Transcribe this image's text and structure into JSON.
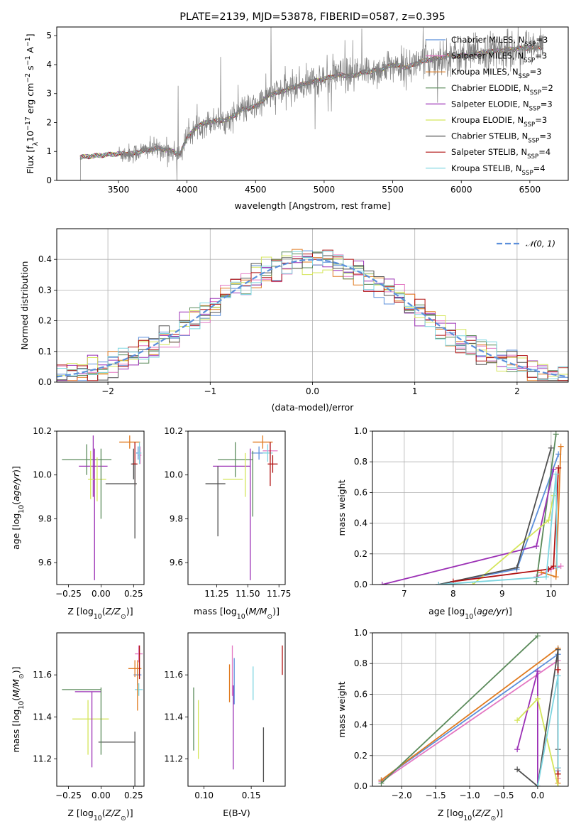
{
  "colors": {
    "Chabrier MILES": "#5b8fdb",
    "Salpeter MILES": "#e377c2",
    "Kroupa MILES": "#e07b20",
    "Chabrier ELODIE": "#5a8a5a",
    "Salpeter ELODIE": "#9b30b5",
    "Kroupa ELODIE": "#d4e55a",
    "Chabrier STELIB": "#505050",
    "Salpeter STELIB": "#b01010",
    "Kroupa STELIB": "#7dd5e0"
  },
  "chart_data": [
    {
      "id": "spectrum",
      "type": "line",
      "title": "PLATE=2139, MJD=53878, FIBERID=0587, z=0.395",
      "xlabel": "wavelength [Angstrom, rest frame]",
      "ylabel": "Flux [f_λ10^-17 erg cm^-2 s^-1 A^-1]",
      "xlim": [
        3050,
        6780
      ],
      "ylim": [
        0,
        5.3
      ],
      "xticks": [
        3500,
        4000,
        4500,
        5000,
        5500,
        6000,
        6500
      ],
      "yticks": [
        0,
        1,
        2,
        3,
        4,
        5
      ],
      "legend_location": "upper right",
      "legend": [
        {
          "model": "Chabrier MILES",
          "label": "Chabrier MILES, N_SSP=3"
        },
        {
          "model": "Salpeter MILES",
          "label": "Salpeter MILES, N_SSP=3"
        },
        {
          "model": "Kroupa MILES",
          "label": "Kroupa MILES, N_SSP=3"
        },
        {
          "model": "Chabrier ELODIE",
          "label": "Chabrier ELODIE, N_SSP=2"
        },
        {
          "model": "Salpeter ELODIE",
          "label": "Salpeter ELODIE, N_SSP=3"
        },
        {
          "model": "Kroupa ELODIE",
          "label": "Kroupa ELODIE, N_SSP=3"
        },
        {
          "model": "Chabrier STELIB",
          "label": "Chabrier STELIB, N_SSP=3"
        },
        {
          "model": "Salpeter STELIB",
          "label": "Salpeter STELIB, N_SSP=4"
        },
        {
          "model": "Kroupa STELIB",
          "label": "Kroupa STELIB, N_SSP=4"
        }
      ],
      "data_color": "#808080",
      "continuum": [
        [
          3220,
          0.8
        ],
        [
          3400,
          0.88
        ],
        [
          3500,
          0.92
        ],
        [
          3600,
          0.92
        ],
        [
          3700,
          1.05
        ],
        [
          3800,
          1.1
        ],
        [
          3900,
          1.0
        ],
        [
          3950,
          0.9
        ],
        [
          4000,
          1.5
        ],
        [
          4100,
          1.95
        ],
        [
          4200,
          2.05
        ],
        [
          4300,
          2.1
        ],
        [
          4400,
          2.45
        ],
        [
          4500,
          2.55
        ],
        [
          4600,
          2.95
        ],
        [
          4700,
          3.1
        ],
        [
          4800,
          3.25
        ],
        [
          4900,
          3.4
        ],
        [
          5000,
          3.5
        ],
        [
          5100,
          3.65
        ],
        [
          5200,
          3.6
        ],
        [
          5300,
          3.75
        ],
        [
          5400,
          3.8
        ],
        [
          5500,
          4.0
        ],
        [
          5600,
          3.9
        ],
        [
          5700,
          4.1
        ],
        [
          5800,
          4.2
        ],
        [
          5900,
          4.3
        ],
        [
          6000,
          4.3
        ],
        [
          6200,
          4.45
        ],
        [
          6400,
          4.55
        ],
        [
          6600,
          4.6
        ]
      ],
      "noise_start": 3500
    },
    {
      "id": "residuals",
      "type": "line",
      "xlabel": "(data-model)/error",
      "ylabel": "Normed distribution",
      "xlim": [
        -2.5,
        2.5
      ],
      "ylim": [
        0,
        0.5
      ],
      "xticks": [
        -2,
        -1,
        0,
        1,
        2
      ],
      "yticks": [
        0.0,
        0.1,
        0.2,
        0.3,
        0.4
      ],
      "grid": true,
      "legend_location": "upper right",
      "gaussian_label": "𝒩(0, 1)",
      "gaussian_color": "#5b8fdb",
      "bin_width": 0.1
    },
    {
      "id": "age_vs_Z",
      "type": "scatter",
      "xlabel": "Z [log10(Z/Z☉)]",
      "ylabel": "age [log10(age/yr)]",
      "xlim": [
        -0.34,
        0.33
      ],
      "ylim": [
        9.5,
        10.2
      ],
      "xticks": [
        -0.25,
        0.0,
        0.25
      ],
      "yticks": [
        9.6,
        9.8,
        10.0,
        10.2
      ],
      "points": [
        {
          "model": "Chabrier MILES",
          "x": 0.285,
          "xerr": 0.015,
          "y": 10.1,
          "yerr": 0.03
        },
        {
          "model": "Salpeter MILES",
          "x": 0.3,
          "xerr": 0.01,
          "y": 10.09,
          "yerr": 0.04
        },
        {
          "model": "Kroupa MILES",
          "x": 0.22,
          "xerr": 0.08,
          "y": 10.15,
          "yerr": 0.03
        },
        {
          "model": "Chabrier ELODIE",
          "x": -0.11,
          "xerr": 0.19,
          "y": 10.07,
          "yerr": 0.07
        },
        {
          "model": "Salpeter ELODIE",
          "x": -0.06,
          "xerr": 0.11,
          "y": 10.04,
          "yerr": 0.14
        },
        {
          "model": "Kroupa ELODIE",
          "x": -0.03,
          "xerr": 0.07,
          "y": 9.98,
          "yerr": 0.1
        },
        {
          "model": "Chabrier STELIB",
          "x": 0.25,
          "xerr": 0.02,
          "y": 10.05,
          "yerr": 0.07
        },
        {
          "model": "Salpeter STELIB",
          "x": 0.26,
          "xerr": 0.02,
          "y": 10.05,
          "yerr": 0.1
        },
        {
          "model": "Kroupa STELIB",
          "x": 0.295,
          "xerr": 0.015,
          "y": 10.1,
          "yerr": 0.05
        }
      ],
      "extra_bars": [
        {
          "model": "Chabrier ELODIE",
          "x": 0.0,
          "y": 9.96,
          "xerr": 0.0,
          "yerr": 0.16
        },
        {
          "model": "Salpeter ELODIE",
          "x": -0.05,
          "y": 9.82,
          "xerr": 0.0,
          "yerr": 0.3
        },
        {
          "model": "Kroupa ELODIE",
          "x": -0.08,
          "y": 10.0,
          "xerr": 0.0,
          "yerr": 0.11
        },
        {
          "model": "Chabrier STELIB",
          "x": 0.155,
          "y": 9.96,
          "xerr": 0.12,
          "yerr": 0.0
        },
        {
          "model": "Chabrier STELIB",
          "x": 0.26,
          "y": 9.88,
          "xerr": 0.0,
          "yerr": 0.17
        }
      ]
    },
    {
      "id": "age_vs_mass",
      "type": "scatter",
      "xlabel": "mass [log10(M/M☉)]",
      "ylabel": "",
      "xlim": [
        11.02,
        11.8
      ],
      "ylim": [
        9.5,
        10.2
      ],
      "xticks": [
        11.25,
        11.5,
        11.75
      ],
      "yticks": [
        9.6,
        9.8,
        10.0,
        10.2
      ],
      "points": [
        {
          "model": "Chabrier MILES",
          "x": 11.59,
          "xerr": 0.06,
          "y": 10.1,
          "yerr": 0.03
        },
        {
          "model": "Salpeter MILES",
          "x": 11.68,
          "xerr": 0.06,
          "y": 10.11,
          "yerr": 0.04
        },
        {
          "model": "Kroupa MILES",
          "x": 11.62,
          "xerr": 0.08,
          "y": 10.15,
          "yerr": 0.03
        },
        {
          "model": "Chabrier ELODIE",
          "x": 11.4,
          "xerr": 0.14,
          "y": 10.07,
          "yerr": 0.08
        },
        {
          "model": "Salpeter ELODIE",
          "x": 11.37,
          "xerr": 0.15,
          "y": 10.04,
          "yerr": 0.0
        },
        {
          "model": "Kroupa ELODIE",
          "x": 11.38,
          "xerr": 0.08,
          "y": 9.98,
          "yerr": 0.0
        },
        {
          "model": "Chabrier STELIB",
          "x": 11.24,
          "xerr": 0.08,
          "y": 9.96,
          "yerr": 0.0
        },
        {
          "model": "Salpeter STELIB",
          "x": 11.7,
          "xerr": 0.04,
          "y": 10.05,
          "yerr": 0.04
        },
        {
          "model": "Kroupa STELIB",
          "x": 11.66,
          "xerr": 0.04,
          "y": 10.1,
          "yerr": 0.04
        }
      ],
      "extra_bars": [
        {
          "model": "Chabrier ELODIE",
          "x": 11.54,
          "y": 9.96,
          "xerr": 0.0,
          "yerr": 0.15
        },
        {
          "model": "Salpeter ELODIE",
          "x": 11.52,
          "y": 9.82,
          "xerr": 0.0,
          "yerr": 0.3
        },
        {
          "model": "Kroupa ELODIE",
          "x": 11.48,
          "y": 10.0,
          "xerr": 0.0,
          "yerr": 0.1
        },
        {
          "model": "Chabrier STELIB",
          "x": 11.26,
          "y": 9.88,
          "xerr": 0.0,
          "yerr": 0.16
        },
        {
          "model": "Salpeter STELIB",
          "x": 11.68,
          "y": 10.05,
          "xerr": 0.0,
          "yerr": 0.1
        }
      ]
    },
    {
      "id": "weight_vs_age",
      "type": "line",
      "xlabel": "age [log10(age/yr)]",
      "ylabel": "mass weight",
      "xlim": [
        6.35,
        10.35
      ],
      "ylim": [
        0,
        1.0
      ],
      "xticks": [
        7,
        8,
        9,
        10
      ],
      "yticks": [
        0.0,
        0.2,
        0.4,
        0.6,
        0.8,
        1.0
      ],
      "grid": true,
      "series": [
        {
          "model": "Chabrier MILES",
          "x": [
            7.7,
            9.3,
            10.15
          ],
          "y": [
            0.0,
            0.1,
            0.85
          ]
        },
        {
          "model": "Salpeter MILES",
          "x": [
            9.7,
            10.0,
            10.2
          ],
          "y": [
            0.05,
            0.1,
            0.12
          ]
        },
        {
          "model": "Kroupa MILES",
          "x": [
            9.8,
            10.1,
            10.2
          ],
          "y": [
            0.08,
            0.05,
            0.9
          ]
        },
        {
          "model": "Chabrier ELODIE",
          "x": [
            9.7,
            10.1
          ],
          "y": [
            0.02,
            0.98
          ]
        },
        {
          "model": "Salpeter ELODIE",
          "x": [
            6.55,
            9.7,
            10.05
          ],
          "y": [
            0.0,
            0.25,
            0.75
          ]
        },
        {
          "model": "Kroupa ELODIE",
          "x": [
            8.4,
            9.95,
            10.05
          ],
          "y": [
            0.0,
            0.42,
            0.58
          ]
        },
        {
          "model": "Chabrier STELIB",
          "x": [
            7.7,
            9.3,
            10.0
          ],
          "y": [
            0.0,
            0.11,
            0.89
          ]
        },
        {
          "model": "Salpeter STELIB",
          "x": [
            8.0,
            9.95,
            10.05,
            10.15
          ],
          "y": [
            0.02,
            0.1,
            0.12,
            0.76
          ]
        },
        {
          "model": "Kroupa STELIB",
          "x": [
            7.7,
            9.9,
            10.1,
            10.12
          ],
          "y": [
            0.0,
            0.05,
            0.72,
            0.11
          ]
        }
      ]
    },
    {
      "id": "mass_vs_Z",
      "type": "scatter",
      "xlabel": "Z [log10(Z/Z☉)]",
      "ylabel": "mass [log10(M/M☉)]",
      "xlim": [
        -0.34,
        0.33
      ],
      "ylim": [
        11.07,
        11.8
      ],
      "xticks": [
        -0.25,
        0.0,
        0.25
      ],
      "yticks": [
        11.2,
        11.4,
        11.6
      ],
      "points": [
        {
          "model": "Chabrier MILES",
          "x": 0.28,
          "xerr": 0.03,
          "y": 11.6,
          "yerr": 0.05
        },
        {
          "model": "Salpeter MILES",
          "x": 0.29,
          "xerr": 0.03,
          "y": 11.7,
          "yerr": 0.04
        },
        {
          "model": "Kroupa MILES",
          "x": 0.26,
          "xerr": 0.05,
          "y": 11.63,
          "yerr": 0.04
        },
        {
          "model": "Chabrier ELODIE",
          "x": -0.15,
          "xerr": 0.15,
          "y": 11.53,
          "yerr": 0.0
        },
        {
          "model": "Salpeter ELODIE",
          "x": -0.1,
          "xerr": 0.1,
          "y": 11.52,
          "yerr": 0.0
        },
        {
          "model": "Kroupa ELODIE",
          "x": -0.08,
          "xerr": 0.14,
          "y": 11.39,
          "yerr": 0.0
        },
        {
          "model": "Chabrier STELIB",
          "x": 0.12,
          "xerr": 0.14,
          "y": 11.28,
          "yerr": 0.0
        },
        {
          "model": "Salpeter STELIB",
          "x": 0.295,
          "xerr": 0.0,
          "y": 11.66,
          "yerr": 0.08
        },
        {
          "model": "Kroupa STELIB",
          "x": 0.29,
          "xerr": 0.03,
          "y": 11.53,
          "yerr": 0.03
        }
      ],
      "extra_bars": [
        {
          "model": "Chabrier ELODIE",
          "x": 0.0,
          "y": 11.38,
          "xerr": 0.0,
          "yerr": 0.16
        },
        {
          "model": "Salpeter ELODIE",
          "x": -0.07,
          "y": 11.34,
          "xerr": 0.0,
          "yerr": 0.18
        },
        {
          "model": "Kroupa ELODIE",
          "x": -0.1,
          "y": 11.35,
          "xerr": 0.0,
          "yerr": 0.13
        },
        {
          "model": "Chabrier STELIB",
          "x": 0.26,
          "y": 11.2,
          "xerr": 0.0,
          "yerr": 0.13
        },
        {
          "model": "Kroupa MILES",
          "x": 0.28,
          "y": 11.55,
          "xerr": 0.0,
          "yerr": 0.12
        }
      ]
    },
    {
      "id": "mass_vs_ebv",
      "type": "scatter",
      "xlabel": "E(B-V)",
      "ylabel": "",
      "xlim": [
        0.083,
        0.186
      ],
      "ylim": [
        11.07,
        11.8
      ],
      "xticks": [
        0.1,
        0.15
      ],
      "yticks": [
        11.2,
        11.4,
        11.6
      ],
      "points": [
        {
          "model": "Chabrier MILES",
          "x": 0.132,
          "xerr": 0.0,
          "y": 11.57,
          "yerr": 0.11
        },
        {
          "model": "Salpeter MILES",
          "x": 0.13,
          "xerr": 0.0,
          "y": 11.62,
          "yerr": 0.12
        },
        {
          "model": "Kroupa MILES",
          "x": 0.127,
          "xerr": 0.0,
          "y": 11.56,
          "yerr": 0.09
        },
        {
          "model": "Chabrier ELODIE",
          "x": 0.089,
          "xerr": 0.0,
          "y": 11.39,
          "yerr": 0.15
        },
        {
          "model": "Salpeter ELODIE",
          "x": 0.131,
          "xerr": 0.0,
          "y": 11.35,
          "yerr": 0.2
        },
        {
          "model": "Kroupa ELODIE",
          "x": 0.094,
          "xerr": 0.0,
          "y": 11.34,
          "yerr": 0.14
        },
        {
          "model": "Chabrier STELIB",
          "x": 0.163,
          "xerr": 0.0,
          "y": 11.22,
          "yerr": 0.13
        },
        {
          "model": "Salpeter STELIB",
          "x": 0.183,
          "xerr": 0.0,
          "y": 11.67,
          "yerr": 0.07
        },
        {
          "model": "Kroupa STELIB",
          "x": 0.152,
          "xerr": 0.0,
          "y": 11.56,
          "yerr": 0.08
        }
      ]
    },
    {
      "id": "weight_vs_Z",
      "type": "line",
      "xlabel": "Z [log10(Z/Z☉)]",
      "ylabel": "mass weight",
      "xlim": [
        -2.43,
        0.45
      ],
      "ylim": [
        0,
        1.0
      ],
      "xticks": [
        -2.0,
        -1.5,
        -1.0,
        -0.5,
        0.0
      ],
      "yticks": [
        0.0,
        0.2,
        0.4,
        0.6,
        0.8,
        1.0
      ],
      "grid": true,
      "series": [
        {
          "model": "Chabrier MILES",
          "x": [
            -2.3,
            0.3,
            0.3
          ],
          "y": [
            0.04,
            0.86,
            0.1
          ]
        },
        {
          "model": "Salpeter MILES",
          "x": [
            -2.3,
            0.3,
            0.3,
            0.3
          ],
          "y": [
            0.03,
            0.82,
            0.12,
            0.05
          ]
        },
        {
          "model": "Kroupa MILES",
          "x": [
            -2.3,
            0.3,
            0.3,
            0.3
          ],
          "y": [
            0.04,
            0.9,
            0.08,
            0.02
          ]
        },
        {
          "model": "Chabrier ELODIE",
          "x": [
            -2.3,
            0.0
          ],
          "y": [
            0.02,
            0.98
          ]
        },
        {
          "model": "Salpeter ELODIE",
          "x": [
            -0.3,
            0.0,
            0.0
          ],
          "y": [
            0.24,
            0.75,
            0.0
          ]
        },
        {
          "model": "Kroupa ELODIE",
          "x": [
            -0.3,
            0.0,
            0.3
          ],
          "y": [
            0.43,
            0.57,
            0.0
          ]
        },
        {
          "model": "Chabrier STELIB",
          "x": [
            -0.3,
            0.0,
            0.3,
            0.3
          ],
          "y": [
            0.11,
            0.0,
            0.89,
            0.24
          ]
        },
        {
          "model": "Salpeter STELIB",
          "x": [
            0.3,
            0.3,
            0.3
          ],
          "y": [
            0.76,
            0.12,
            0.08
          ]
        },
        {
          "model": "Kroupa STELIB",
          "x": [
            0.0,
            0.3,
            0.3
          ],
          "y": [
            0.0,
            0.72,
            0.12
          ]
        }
      ]
    }
  ]
}
